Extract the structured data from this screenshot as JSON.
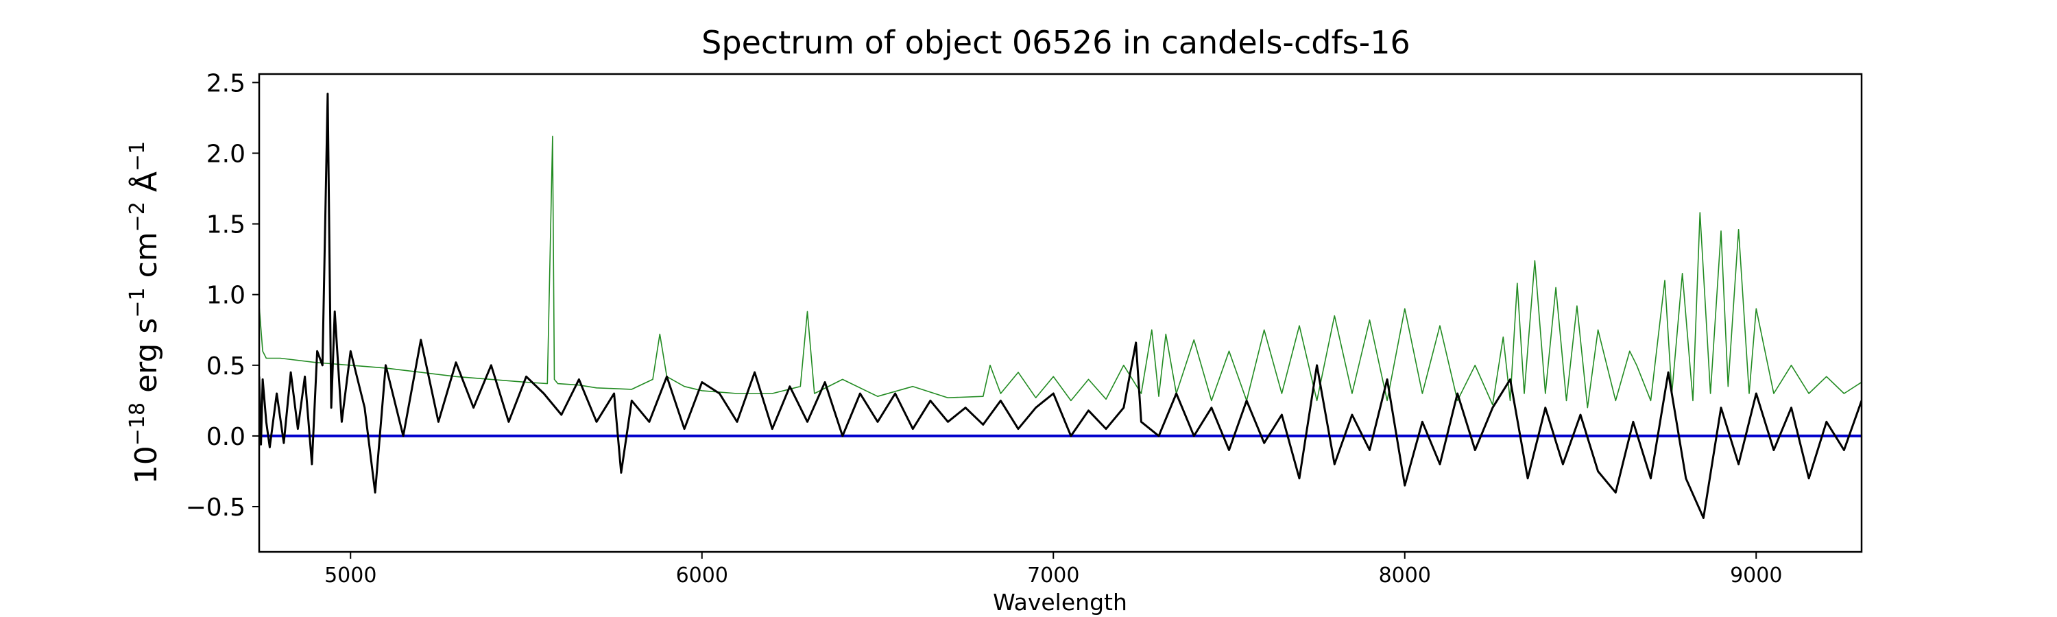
{
  "chart_data": {
    "type": "line",
    "title": "Spectrum of object 06526 in candels-cdfs-16",
    "xlabel": "Wavelength",
    "ylabel_parts": {
      "base": "10",
      "exp1": "−18",
      "unit1": " erg s",
      "exp2": "−1",
      "unit2": " cm",
      "exp3": "−2",
      "unit3": " Å",
      "exp4": "−1"
    },
    "xlim": [
      4740,
      9300
    ],
    "ylim": [
      -0.82,
      2.56
    ],
    "x_ticks": [
      5000,
      6000,
      7000,
      8000,
      9000
    ],
    "x_tick_labels": [
      "5000",
      "6000",
      "7000",
      "8000",
      "9000"
    ],
    "y_ticks": [
      -0.5,
      0.0,
      0.5,
      1.0,
      1.5,
      2.0,
      2.5
    ],
    "y_tick_labels": [
      "−0.5",
      "0.0",
      "0.5",
      "1.0",
      "1.5",
      "2.0",
      "2.5"
    ],
    "grid": false,
    "colors": {
      "flux": "#000000",
      "error": "#228b22",
      "zero": "#0000cc"
    },
    "series": [
      {
        "role": "flux",
        "color": "#000000",
        "x": [
          4740,
          4745,
          4750,
          4760,
          4770,
          4790,
          4810,
          4830,
          4850,
          4870,
          4890,
          4905,
          4920,
          4935,
          4945,
          4955,
          4975,
          5000,
          5040,
          5070,
          5100,
          5150,
          5200,
          5250,
          5300,
          5350,
          5400,
          5450,
          5500,
          5550,
          5600,
          5650,
          5700,
          5750,
          5770,
          5800,
          5850,
          5900,
          5950,
          6000,
          6050,
          6100,
          6150,
          6200,
          6250,
          6300,
          6350,
          6400,
          6450,
          6500,
          6550,
          6600,
          6650,
          6700,
          6750,
          6800,
          6850,
          6900,
          6950,
          7000,
          7050,
          7100,
          7150,
          7200,
          7235,
          7250,
          7300,
          7350,
          7400,
          7450,
          7500,
          7550,
          7600,
          7650,
          7700,
          7750,
          7800,
          7850,
          7900,
          7950,
          8000,
          8050,
          8100,
          8150,
          8200,
          8250,
          8300,
          8350,
          8400,
          8450,
          8500,
          8550,
          8600,
          8650,
          8700,
          8750,
          8800,
          8850,
          8900,
          8950,
          9000,
          9050,
          9100,
          9150,
          9200,
          9250,
          9300
        ],
        "y": [
          0.42,
          -0.06,
          0.4,
          0.1,
          -0.08,
          0.3,
          -0.05,
          0.45,
          0.05,
          0.42,
          -0.2,
          0.6,
          0.5,
          2.42,
          0.2,
          0.88,
          0.1,
          0.6,
          0.2,
          -0.4,
          0.5,
          0.0,
          0.68,
          0.1,
          0.52,
          0.2,
          0.5,
          0.1,
          0.42,
          0.3,
          0.15,
          0.4,
          0.1,
          0.3,
          -0.26,
          0.25,
          0.1,
          0.42,
          0.05,
          0.38,
          0.3,
          0.1,
          0.45,
          0.05,
          0.35,
          0.1,
          0.38,
          0.0,
          0.3,
          0.1,
          0.3,
          0.05,
          0.25,
          0.1,
          0.2,
          0.08,
          0.25,
          0.05,
          0.2,
          0.3,
          0.0,
          0.18,
          0.05,
          0.2,
          0.66,
          0.1,
          0.0,
          0.3,
          0.0,
          0.2,
          -0.1,
          0.25,
          -0.05,
          0.15,
          -0.3,
          0.5,
          -0.2,
          0.15,
          -0.1,
          0.4,
          -0.35,
          0.1,
          -0.2,
          0.3,
          -0.1,
          0.2,
          0.4,
          -0.3,
          0.2,
          -0.2,
          0.15,
          -0.25,
          -0.4,
          0.1,
          -0.3,
          0.45,
          -0.3,
          -0.58,
          0.2,
          -0.2,
          0.3,
          -0.1,
          0.2,
          -0.3,
          0.1,
          -0.1,
          0.25
        ]
      },
      {
        "role": "error",
        "color": "#228b22",
        "x": [
          4740,
          4750,
          4760,
          4800,
          4900,
          5000,
          5100,
          5200,
          5300,
          5400,
          5500,
          5560,
          5575,
          5580,
          5590,
          5650,
          5700,
          5800,
          5860,
          5880,
          5900,
          5950,
          6000,
          6100,
          6200,
          6280,
          6300,
          6320,
          6400,
          6500,
          6600,
          6700,
          6800,
          6820,
          6850,
          6900,
          6950,
          7000,
          7050,
          7100,
          7150,
          7200,
          7250,
          7280,
          7300,
          7320,
          7350,
          7400,
          7450,
          7500,
          7550,
          7600,
          7650,
          7700,
          7750,
          7800,
          7850,
          7900,
          7950,
          8000,
          8050,
          8100,
          8150,
          8200,
          8250,
          8280,
          8300,
          8320,
          8340,
          8370,
          8400,
          8430,
          8460,
          8490,
          8520,
          8550,
          8600,
          8640,
          8660,
          8700,
          8740,
          8760,
          8790,
          8820,
          8840,
          8870,
          8900,
          8920,
          8950,
          8980,
          9000,
          9050,
          9100,
          9150,
          9200,
          9250,
          9300
        ],
        "y": [
          0.92,
          0.6,
          0.55,
          0.55,
          0.52,
          0.5,
          0.48,
          0.45,
          0.42,
          0.4,
          0.38,
          0.37,
          2.12,
          0.4,
          0.37,
          0.36,
          0.34,
          0.33,
          0.4,
          0.72,
          0.42,
          0.35,
          0.32,
          0.3,
          0.3,
          0.35,
          0.88,
          0.3,
          0.4,
          0.28,
          0.35,
          0.27,
          0.28,
          0.5,
          0.3,
          0.45,
          0.27,
          0.42,
          0.25,
          0.4,
          0.26,
          0.5,
          0.3,
          0.75,
          0.28,
          0.72,
          0.3,
          0.68,
          0.25,
          0.6,
          0.25,
          0.75,
          0.3,
          0.78,
          0.25,
          0.85,
          0.3,
          0.82,
          0.25,
          0.9,
          0.3,
          0.78,
          0.25,
          0.5,
          0.22,
          0.7,
          0.25,
          1.08,
          0.3,
          1.24,
          0.3,
          1.05,
          0.25,
          0.92,
          0.2,
          0.75,
          0.25,
          0.6,
          0.5,
          0.25,
          1.1,
          0.3,
          1.15,
          0.25,
          1.58,
          0.3,
          1.45,
          0.35,
          1.46,
          0.3,
          0.9,
          0.3,
          0.5,
          0.3,
          0.42,
          0.3,
          0.38
        ]
      },
      {
        "role": "zero",
        "color": "#0000cc",
        "x": [
          4740,
          9300
        ],
        "y": [
          0.0,
          0.0
        ]
      }
    ]
  }
}
